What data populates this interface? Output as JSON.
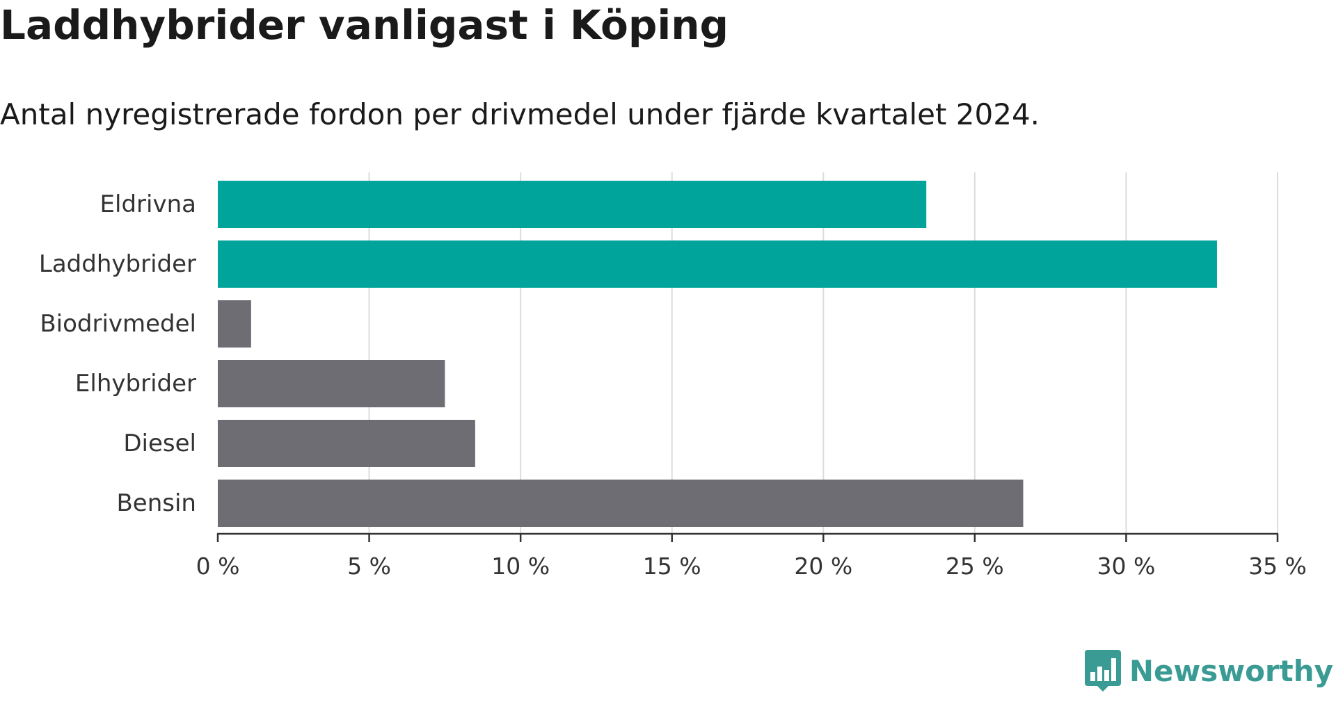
{
  "title": "Laddhybrider vanligast i Köping",
  "subtitle": "Antal nyregistrerade fordon per drivmedel under fjärde kvartalet 2024.",
  "brand": {
    "name": "Newsworthy",
    "icon": "bar-chart-speech-bubble-icon"
  },
  "colors": {
    "highlight": "#00a49a",
    "default": "#6e6d74",
    "grid": "#dcdcdc",
    "axis": "#333333",
    "text": "#333333",
    "brand": "#3a9b94"
  },
  "chart_data": {
    "type": "bar",
    "orientation": "horizontal",
    "categories": [
      "Eldrivna",
      "Laddhybrider",
      "Biodrivmedel",
      "Elhybrider",
      "Diesel",
      "Bensin"
    ],
    "values": [
      23.4,
      33.0,
      1.1,
      7.5,
      8.5,
      26.6
    ],
    "highlighted": [
      true,
      true,
      false,
      false,
      false,
      false
    ],
    "xlim": [
      0,
      35
    ],
    "ticks": [
      0,
      5,
      10,
      15,
      20,
      25,
      30,
      35
    ],
    "tick_labels": [
      "0 %",
      "5 %",
      "10 %",
      "15 %",
      "20 %",
      "25 %",
      "30 %",
      "35 %"
    ],
    "xlabel": "",
    "ylabel": "",
    "grid": true,
    "legend": "none"
  }
}
